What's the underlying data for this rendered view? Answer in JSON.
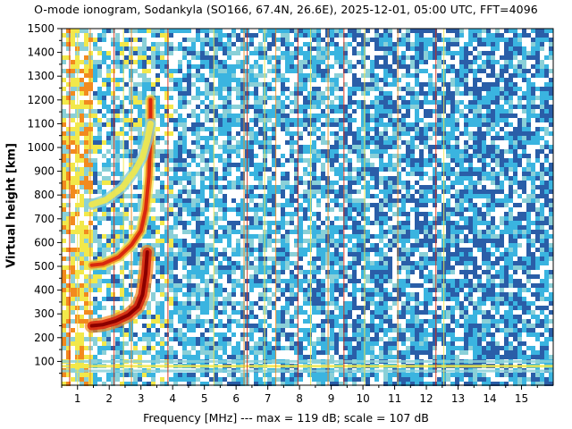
{
  "chart_data": {
    "type": "heatmap",
    "title": "O-mode ionogram, Sodankyla (SO166, 67.4N, 26.6E), 2025-12-01, 05:00 UTC, FFT=4096",
    "xlabel": "Frequency [MHz]   ---   max = 119 dB; scale = 107 dB",
    "ylabel": "Virtual height [km]",
    "xlim": [
      0.5,
      16.0
    ],
    "ylim": [
      0,
      1500
    ],
    "x_ticks": [
      "1",
      "2",
      "3",
      "4",
      "5",
      "6",
      "7",
      "8",
      "9",
      "10",
      "11",
      "12",
      "13",
      "14",
      "15"
    ],
    "y_ticks": [
      "100",
      "200",
      "300",
      "400",
      "500",
      "600",
      "700",
      "800",
      "900",
      "1000",
      "1100",
      "1200",
      "1300",
      "1400",
      "1500"
    ],
    "colorscale": [
      "#ffffff",
      "#3ab4e0",
      "#2a5ea8",
      "#8ad0d8",
      "#f2e84a",
      "#f28a1e",
      "#d8280f",
      "#8a0000"
    ],
    "traces": [
      {
        "name": "",
        "frequency_mhz": [
          1.45,
          1.8,
          2.2,
          2.6,
          2.9,
          3.05,
          3.15,
          3.2
        ],
        "height_km": [
          250,
          255,
          270,
          295,
          330,
          380,
          470,
          560
        ]
      },
      {
        "name": "",
        "frequency_mhz": [
          1.45,
          1.8,
          2.3,
          2.7,
          3.0,
          3.15,
          3.25,
          3.3,
          3.3
        ],
        "height_km": [
          505,
          510,
          540,
          590,
          650,
          740,
          880,
          1050,
          1200
        ]
      },
      {
        "name": "",
        "frequency_mhz": [
          1.45,
          1.9,
          2.4,
          2.8,
          3.05,
          3.2,
          3.3
        ],
        "height_km": [
          760,
          780,
          830,
          900,
          960,
          1030,
          1100
        ]
      }
    ],
    "interference_lines_mhz": [
      0.75,
      1.0,
      1.4,
      2.15,
      2.45,
      2.7,
      3.85,
      5.3,
      6.25,
      6.35,
      6.9,
      7.25,
      7.95,
      8.35,
      8.9,
      9.4,
      10.05,
      11.1,
      12.3,
      12.55
    ]
  }
}
